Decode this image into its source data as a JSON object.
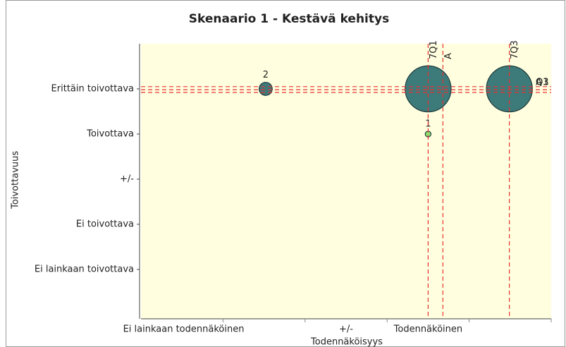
{
  "chart_data": {
    "type": "bubble",
    "title": "Skenaario 1 - Kestävä kehitys",
    "xlabel": "Todennäköisyys",
    "ylabel": "Toivottavuus",
    "x": [
      1.52,
      3.5,
      4.49,
      3.5
    ],
    "values": [
      5,
      5,
      5,
      4
    ],
    "sizes": [
      0.08,
      0.28,
      0.28,
      0.035
    ],
    "point_labels": [
      "2",
      null,
      null,
      "1"
    ],
    "colors": [
      "#3d7a7a",
      "#3d7a7a",
      "#3d7a7a",
      "#90e070"
    ],
    "xlim": [
      0,
      5
    ],
    "ylim": [
      0,
      6
    ],
    "xticks": [
      {
        "value": 0.52,
        "label": "Ei lainkaan todennäköinen"
      },
      {
        "value": 2.5,
        "label": "+/-"
      },
      {
        "value": 3.5,
        "label": "Todennäköinen"
      }
    ],
    "xtick_marks": [
      1,
      2,
      3,
      4,
      5
    ],
    "yticks": [
      {
        "value": 1,
        "label": "Ei lainkaan toivottava"
      },
      {
        "value": 2,
        "label": "Ei toivottava"
      },
      {
        "value": 3,
        "label": "+/-"
      },
      {
        "value": 4,
        "label": "Toivottava"
      },
      {
        "value": 5,
        "label": "Erittäin toivottava"
      }
    ],
    "vertical_markers": [
      {
        "value": 3.5,
        "label": "7Q1"
      },
      {
        "value": 3.68,
        "label": "A"
      },
      {
        "value": 4.49,
        "label": "7Q3"
      }
    ],
    "horizontal_markers": [
      {
        "value": 5.05,
        "label": "Q1"
      },
      {
        "value": 4.98,
        "label": "Q3"
      },
      {
        "value": 4.92,
        "label": "A"
      }
    ],
    "marker_color": "#e83030",
    "plot_background": "#ffffe0"
  }
}
